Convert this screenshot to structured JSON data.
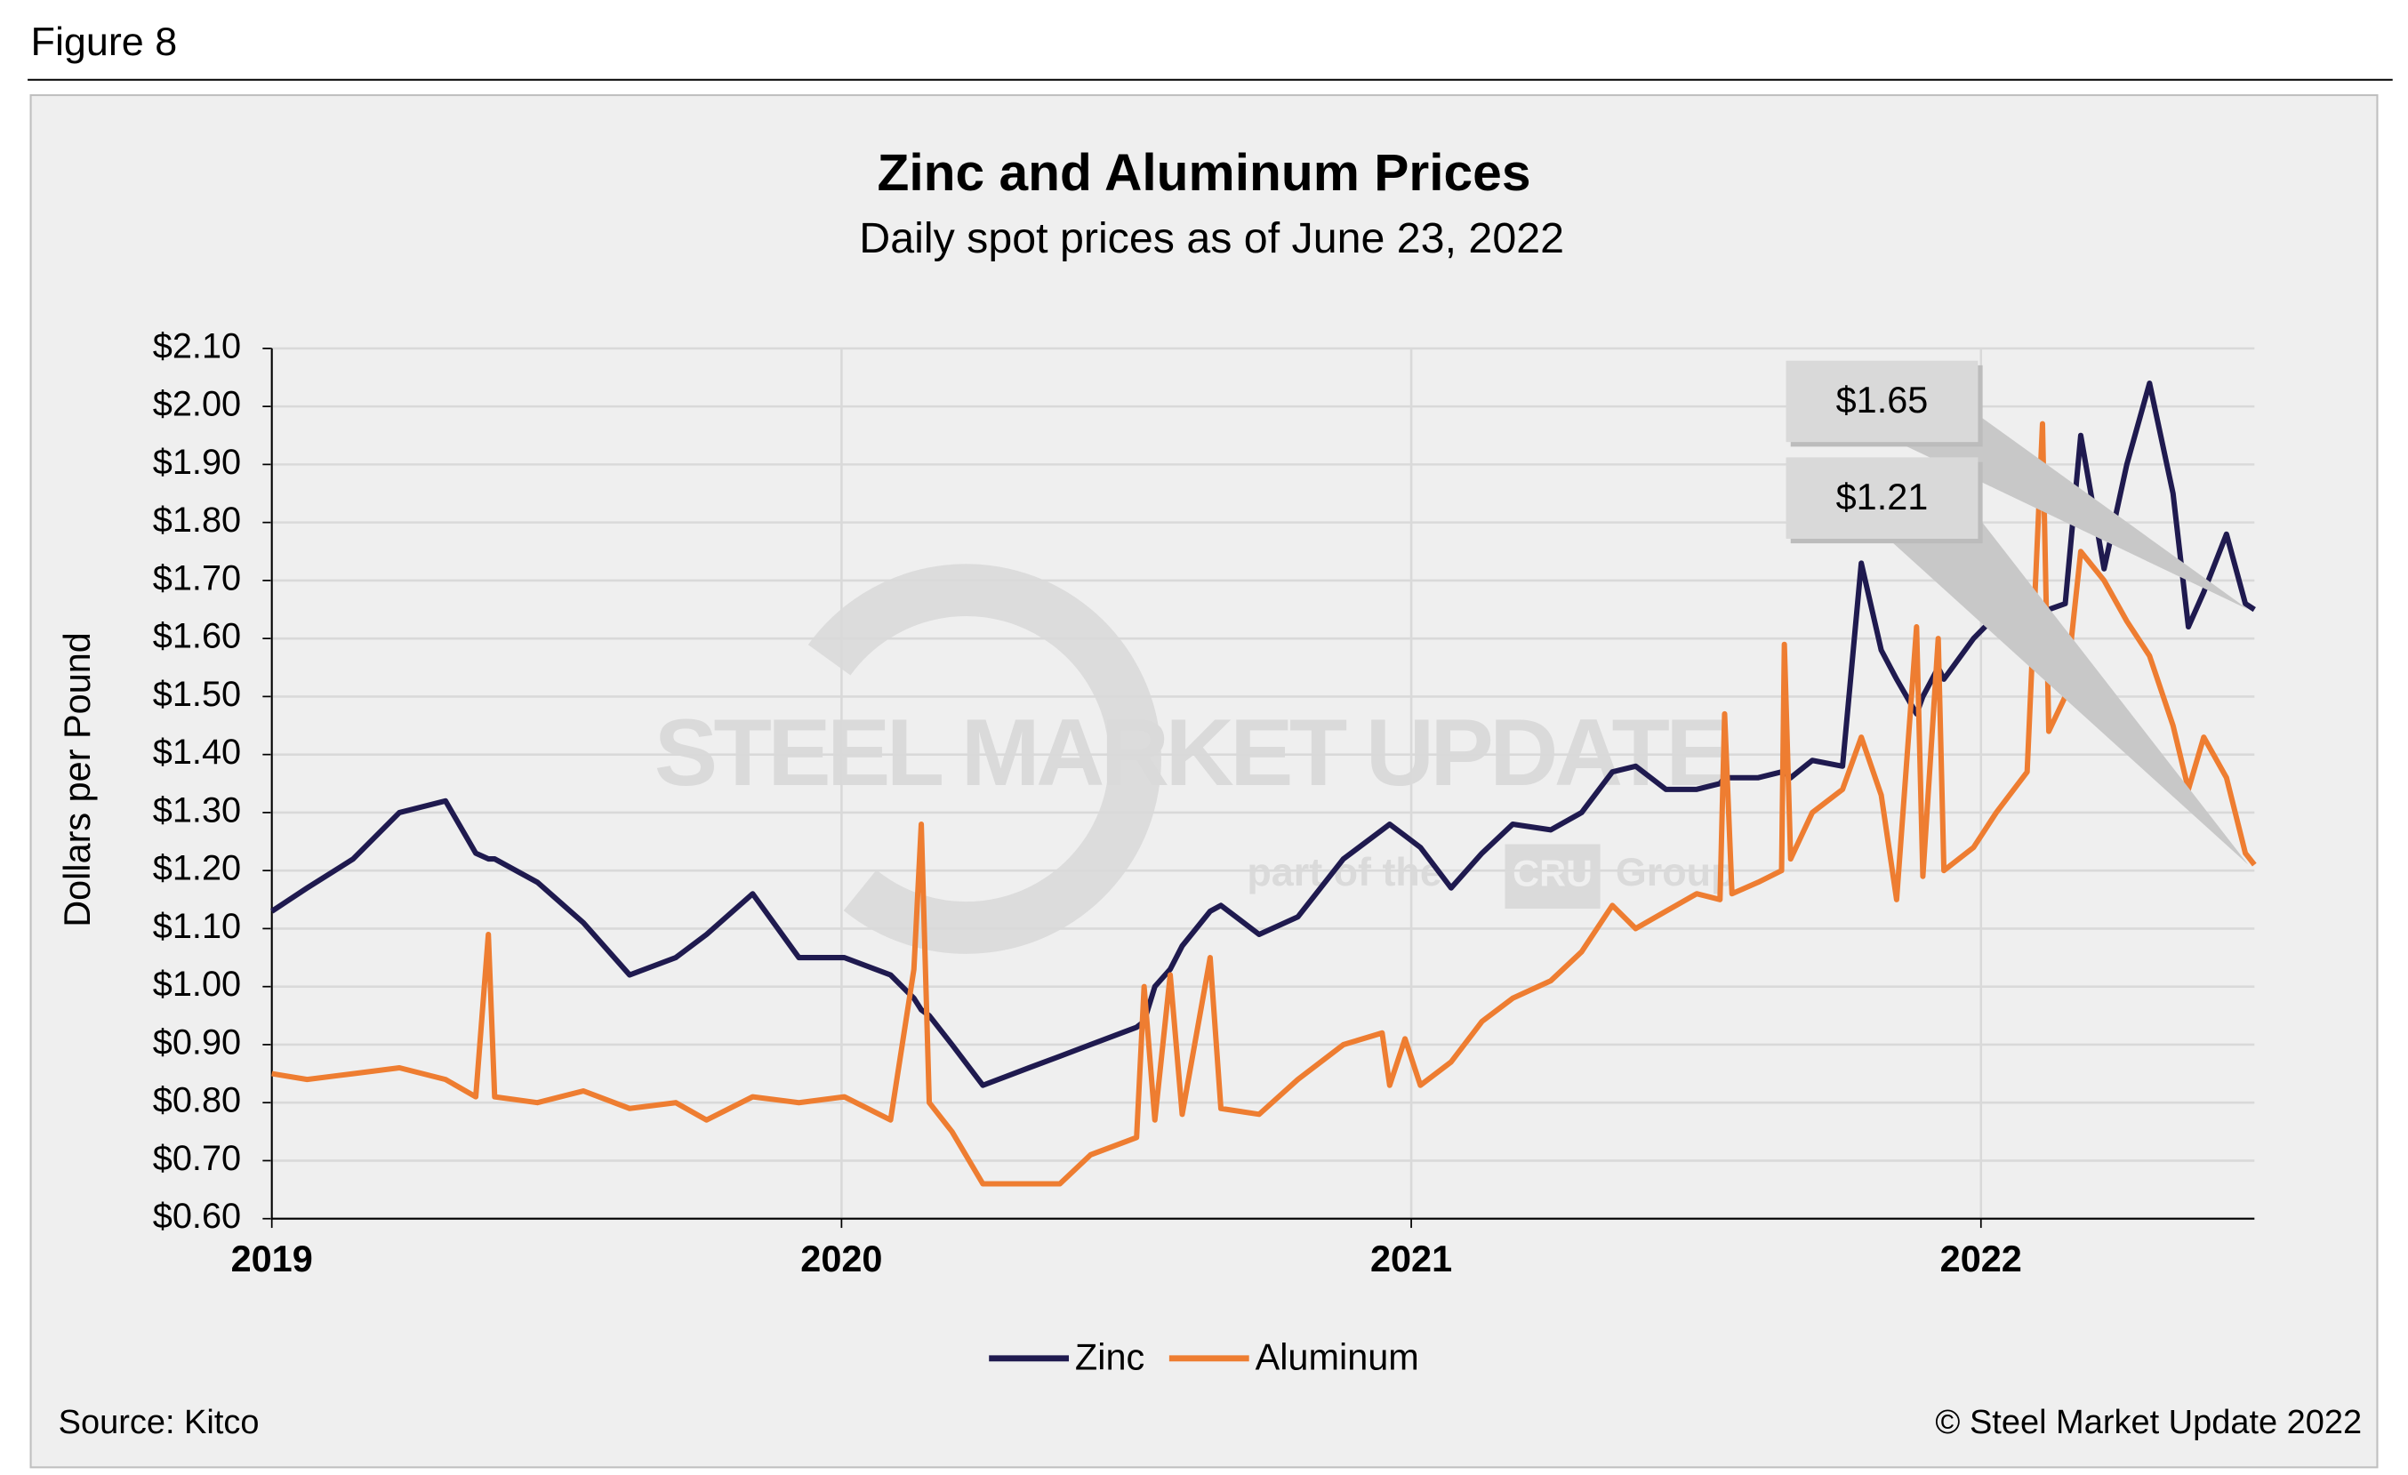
{
  "figure_label": "Figure 8",
  "chart_data": {
    "type": "line",
    "title": "Zinc and Aluminum Prices",
    "subtitle": "Daily spot prices as of June 23, 2022",
    "y_label": "Dollars per Pound",
    "source": "Source: Kitco",
    "copyright": "© Steel Market Update 2022",
    "watermark": [
      "STEEL MARKET UPDATE",
      "part of the",
      "CRU",
      "Group"
    ],
    "grid": true,
    "legend": "bottom",
    "xlim": [
      2019,
      2022.48
    ],
    "xticks": [
      2019,
      2020,
      2021,
      2022
    ],
    "ylim": [
      0.6,
      2.1
    ],
    "yticks": [
      {
        "value": 0.6,
        "label": "$0.60"
      },
      {
        "value": 0.7,
        "label": "$0.70"
      },
      {
        "value": 0.8,
        "label": "$0.80"
      },
      {
        "value": 0.9,
        "label": "$0.90"
      },
      {
        "value": 1.0,
        "label": "$1.00"
      },
      {
        "value": 1.1,
        "label": "$1.10"
      },
      {
        "value": 1.2,
        "label": "$1.20"
      },
      {
        "value": 1.3,
        "label": "$1.30"
      },
      {
        "value": 1.4,
        "label": "$1.40"
      },
      {
        "value": 1.5,
        "label": "$1.50"
      },
      {
        "value": 1.6,
        "label": "$1.60"
      },
      {
        "value": 1.7,
        "label": "$1.70"
      },
      {
        "value": 1.8,
        "label": "$1.80"
      },
      {
        "value": 1.9,
        "label": "$1.90"
      },
      {
        "value": 2.0,
        "label": "$2.00"
      },
      {
        "value": 2.1,
        "label": "$2.10"
      }
    ],
    "x": [
      2019.0,
      2019.062,
      2019.143,
      2019.224,
      2019.305,
      2019.358,
      2019.38,
      2019.391,
      2019.466,
      2019.547,
      2019.628,
      2019.709,
      2019.763,
      2019.844,
      2019.925,
      2020.005,
      2020.086,
      2020.127,
      2020.14,
      2020.154,
      2020.194,
      2020.248,
      2020.329,
      2020.383,
      2020.437,
      2020.518,
      2020.531,
      2020.55,
      2020.577,
      2020.598,
      2020.647,
      2020.666,
      2020.733,
      2020.801,
      2020.881,
      2020.949,
      2020.962,
      2020.989,
      2021.016,
      2021.07,
      2021.124,
      2021.178,
      2021.245,
      2021.299,
      2021.353,
      2021.394,
      2021.447,
      2021.501,
      2021.542,
      2021.55,
      2021.563,
      2021.609,
      2021.65,
      2021.655,
      2021.666,
      2021.704,
      2021.757,
      2021.79,
      2021.825,
      2021.852,
      2021.887,
      2021.898,
      2021.925,
      2021.935,
      2021.987,
      2022.027,
      2022.081,
      2022.108,
      2022.119,
      2022.148,
      2022.175,
      2022.216,
      2022.256,
      2022.296,
      2022.337,
      2022.364,
      2022.391,
      2022.431,
      2022.464,
      2022.48
    ],
    "series": [
      {
        "name": "Zinc",
        "color": "#1f1a4f",
        "values": [
          1.13,
          1.17,
          1.22,
          1.3,
          1.32,
          1.23,
          1.22,
          1.22,
          1.18,
          1.11,
          1.02,
          1.05,
          1.09,
          1.16,
          1.05,
          1.05,
          1.02,
          0.98,
          0.96,
          0.95,
          0.9,
          0.83,
          0.86,
          0.88,
          0.9,
          0.93,
          0.94,
          1.0,
          1.03,
          1.07,
          1.13,
          1.14,
          1.09,
          1.12,
          1.22,
          1.27,
          1.28,
          1.26,
          1.24,
          1.17,
          1.23,
          1.28,
          1.27,
          1.3,
          1.37,
          1.38,
          1.34,
          1.34,
          1.35,
          1.36,
          1.36,
          1.36,
          1.37,
          1.37,
          1.36,
          1.39,
          1.38,
          1.73,
          1.58,
          1.53,
          1.47,
          1.5,
          1.55,
          1.53,
          1.6,
          1.64,
          1.65,
          1.65,
          1.65,
          1.66,
          1.95,
          1.72,
          1.9,
          2.04,
          1.85,
          1.62,
          1.68,
          1.78,
          1.66,
          1.65
        ]
      },
      {
        "name": "Aluminum",
        "color": "#ee7d31",
        "values": [
          0.85,
          0.84,
          0.85,
          0.86,
          0.84,
          0.81,
          1.09,
          0.81,
          0.8,
          0.82,
          0.79,
          0.8,
          0.77,
          0.81,
          0.8,
          0.81,
          0.77,
          1.03,
          1.28,
          0.8,
          0.75,
          0.66,
          0.66,
          0.66,
          0.71,
          0.74,
          1.0,
          0.77,
          1.02,
          0.78,
          1.05,
          0.79,
          0.78,
          0.84,
          0.9,
          0.92,
          0.83,
          0.91,
          0.83,
          0.87,
          0.94,
          0.98,
          1.01,
          1.06,
          1.14,
          1.1,
          1.13,
          1.16,
          1.15,
          1.47,
          1.16,
          1.18,
          1.2,
          1.59,
          1.22,
          1.3,
          1.34,
          1.43,
          1.33,
          1.15,
          1.62,
          1.19,
          1.6,
          1.2,
          1.24,
          1.3,
          1.37,
          1.97,
          1.44,
          1.5,
          1.75,
          1.7,
          1.63,
          1.57,
          1.45,
          1.34,
          1.43,
          1.36,
          1.23,
          1.21
        ]
      }
    ],
    "annotations": [
      {
        "series": 0,
        "label": "$1.65",
        "value": 1.65
      },
      {
        "series": 1,
        "label": "$1.21",
        "value": 1.21
      }
    ]
  }
}
